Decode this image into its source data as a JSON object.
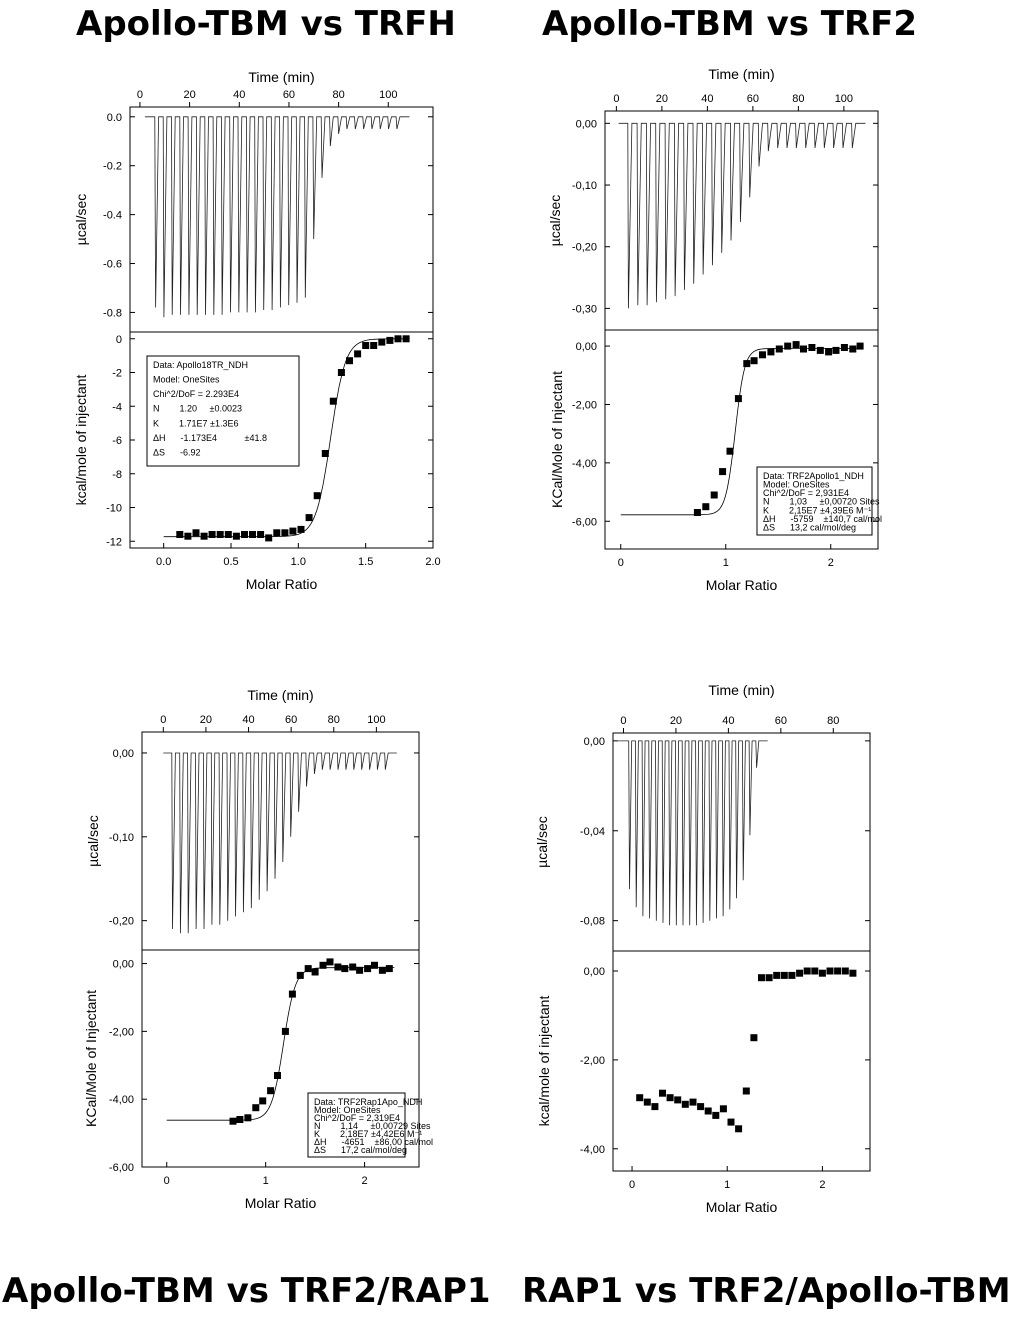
{
  "titles": {
    "a": "Apollo-TBM vs TRFH",
    "b": "Apollo-TBM vs TRF2",
    "c": "Apollo-TBM vs TRF2/RAP1",
    "d": "RAP1 vs TRF2/Apollo-TBM"
  },
  "chart_data": [
    {
      "id": "a",
      "type": "scatter",
      "title": "Apollo-TBM vs TRFH",
      "top": {
        "xlabel": "Time (min)",
        "ylabel": "µcal/sec",
        "xticks": [
          "0",
          "20",
          "40",
          "60",
          "80",
          "100"
        ],
        "xvals": [
          0,
          20,
          40,
          60,
          80,
          100
        ],
        "yticks": [
          "0.0",
          "-0.2",
          "-0.4",
          "-0.6",
          "-0.8"
        ],
        "yvals": [
          0,
          -0.2,
          -0.4,
          -0.6,
          -0.8
        ],
        "xlim": [
          -4,
          118
        ],
        "ylim": [
          -0.88,
          0.04
        ],
        "n_injections": 30,
        "t_start": 6,
        "t_step": 3.35,
        "baseline": 0,
        "peaks": [
          -0.78,
          -0.82,
          -0.81,
          -0.81,
          -0.81,
          -0.81,
          -0.81,
          -0.81,
          -0.81,
          -0.8,
          -0.8,
          -0.8,
          -0.8,
          -0.79,
          -0.79,
          -0.78,
          -0.77,
          -0.76,
          -0.74,
          -0.5,
          -0.25,
          -0.12,
          -0.07,
          -0.05,
          -0.05,
          -0.05,
          -0.05,
          -0.05,
          -0.05,
          -0.05
        ]
      },
      "bottom": {
        "xlabel": "Molar Ratio",
        "ylabel": "kcal/mole of injectant",
        "xticks": [
          "0.0",
          "0.5",
          "1.0",
          "1.5",
          "2.0"
        ],
        "xvals": [
          0,
          0.5,
          1,
          1.5,
          2
        ],
        "yticks": [
          "0",
          "-2",
          "-4",
          "-6",
          "-8",
          "-10",
          "-12"
        ],
        "yvals": [
          0,
          -2,
          -4,
          -6,
          -8,
          -10,
          -12
        ],
        "xlim": [
          -0.25,
          2.0
        ],
        "ylim": [
          -12.4,
          0.4
        ],
        "x": [
          0.12,
          0.18,
          0.24,
          0.3,
          0.36,
          0.42,
          0.48,
          0.54,
          0.6,
          0.66,
          0.72,
          0.78,
          0.84,
          0.9,
          0.96,
          1.02,
          1.08,
          1.14,
          1.2,
          1.26,
          1.32,
          1.38,
          1.44,
          1.5,
          1.56,
          1.62,
          1.68,
          1.74,
          1.8
        ],
        "y": [
          -11.6,
          -11.7,
          -11.5,
          -11.7,
          -11.6,
          -11.6,
          -11.6,
          -11.7,
          -11.6,
          -11.6,
          -11.6,
          -11.8,
          -11.5,
          -11.5,
          -11.4,
          -11.3,
          -10.6,
          -9.3,
          -6.8,
          -3.7,
          -2.0,
          -1.3,
          -0.9,
          -0.4,
          -0.4,
          -0.2,
          -0.1,
          0.0,
          0.0
        ],
        "fit": {
          "low": -11.73,
          "high": 0.0,
          "mid": 1.24,
          "width": 0.055,
          "x0": 0.0,
          "x1": 1.82
        },
        "box": [
          "Data: Apollo18TR_NDH",
          "Model: OneSites",
          "Chi^2/DoF = 2.293E4",
          "N        1.20     ±0.0023",
          "K        1.71E7 ±1.3E6",
          "ΔH      -1.173E4           ±41.8",
          "ΔS      -6.92"
        ]
      }
    },
    {
      "id": "b",
      "type": "scatter",
      "title": "Apollo-TBM vs TRF2",
      "top": {
        "xlabel": "Time (min)",
        "ylabel": "µcal/sec",
        "xticks": [
          "0",
          "20",
          "40",
          "60",
          "80",
          "100"
        ],
        "xvals": [
          0,
          20,
          40,
          60,
          80,
          100
        ],
        "yticks": [
          "0,00",
          "-0,10",
          "-0,20",
          "-0,30"
        ],
        "yvals": [
          0,
          -0.1,
          -0.2,
          -0.3
        ],
        "xlim": [
          -5,
          115
        ],
        "ylim": [
          -0.335,
          0.02
        ],
        "n_injections": 25,
        "t_start": 5,
        "t_step": 4.1,
        "baseline": 0,
        "peaks": [
          -0.3,
          -0.295,
          -0.295,
          -0.29,
          -0.285,
          -0.28,
          -0.27,
          -0.26,
          -0.245,
          -0.23,
          -0.21,
          -0.19,
          -0.16,
          -0.12,
          -0.07,
          -0.045,
          -0.04,
          -0.04,
          -0.04,
          -0.04,
          -0.04,
          -0.04,
          -0.04,
          -0.04,
          -0.04
        ]
      },
      "bottom": {
        "xlabel": "Molar Ratio",
        "ylabel": "KCal/Mole of Injectant",
        "xticks": [
          "0",
          "1",
          "2"
        ],
        "xvals": [
          0,
          1,
          2
        ],
        "yticks": [
          "0,00",
          "-2,00",
          "-4,00",
          "-6,00"
        ],
        "yvals": [
          0,
          -2,
          -4,
          -6
        ],
        "xlim": [
          -0.15,
          2.45
        ],
        "ylim": [
          -6.95,
          0.55
        ],
        "x": [
          0.73,
          0.81,
          0.89,
          0.97,
          1.04,
          1.12,
          1.2,
          1.27,
          1.35,
          1.43,
          1.51,
          1.59,
          1.67,
          1.74,
          1.82,
          1.9,
          1.98,
          2.05,
          2.13,
          2.21,
          2.28
        ],
        "y": [
          -5.7,
          -5.5,
          -5.1,
          -4.3,
          -3.6,
          -1.8,
          -0.6,
          -0.5,
          -0.3,
          -0.2,
          -0.1,
          0.0,
          0.05,
          -0.1,
          -0.05,
          -0.15,
          -0.2,
          -0.15,
          -0.05,
          -0.1,
          0.0
        ],
        "fit": {
          "low": -5.78,
          "high": -0.08,
          "mid": 1.09,
          "width": 0.045,
          "x0": 0.0,
          "x1": 2.3
        },
        "box": [
          "Data: TRF2Apollo1_NDH",
          "Model: OneSites",
          "Chi^2/DoF = 2,931E4",
          "N        1,03     ±0,00720 Sites",
          "K        2,15E7 ±4,39E6 M⁻¹",
          "ΔH      -5759    ±140,7 cal/mol",
          "ΔS      13,2 cal/mol/deg"
        ]
      }
    },
    {
      "id": "c",
      "type": "scatter",
      "title": "Apollo-TBM vs TRF2/RAP1",
      "top": {
        "xlabel": "Time (min)",
        "ylabel": "µcal/sec",
        "xticks": [
          "0",
          "20",
          "40",
          "60",
          "80",
          "100"
        ],
        "xvals": [
          0,
          20,
          40,
          60,
          80,
          100
        ],
        "yticks": [
          "0,00",
          "-0,10",
          "-0,20"
        ],
        "yvals": [
          0,
          -0.1,
          -0.2
        ],
        "xlim": [
          -10,
          120
        ],
        "ylim": [
          -0.235,
          0.025
        ],
        "n_injections": 28,
        "t_start": 4,
        "t_step": 3.7,
        "baseline": 0,
        "peaks": [
          -0.21,
          -0.215,
          -0.215,
          -0.21,
          -0.21,
          -0.205,
          -0.205,
          -0.2,
          -0.195,
          -0.19,
          -0.185,
          -0.175,
          -0.165,
          -0.15,
          -0.13,
          -0.1,
          -0.07,
          -0.04,
          -0.025,
          -0.02,
          -0.02,
          -0.02,
          -0.02,
          -0.02,
          -0.02,
          -0.02,
          -0.02,
          -0.02
        ]
      },
      "bottom": {
        "xlabel": "Molar Ratio",
        "ylabel": "KCal/Mole of Injectant",
        "xticks": [
          "0",
          "1",
          "2"
        ],
        "xvals": [
          0,
          1,
          2
        ],
        "yticks": [
          "0,00",
          "-2,00",
          "-4,00",
          "-6,00"
        ],
        "yvals": [
          0,
          -2,
          -4,
          -6
        ],
        "xlim": [
          -0.25,
          2.55
        ],
        "ylim": [
          -6.0,
          0.4
        ],
        "x": [
          0.67,
          0.74,
          0.82,
          0.9,
          0.97,
          1.05,
          1.12,
          1.2,
          1.27,
          1.35,
          1.43,
          1.5,
          1.58,
          1.65,
          1.73,
          1.8,
          1.88,
          1.95,
          2.03,
          2.1,
          2.18,
          2.25
        ],
        "y": [
          -4.65,
          -4.6,
          -4.55,
          -4.25,
          -4.05,
          -3.75,
          -3.3,
          -2.0,
          -0.9,
          -0.35,
          -0.15,
          -0.25,
          -0.05,
          0.05,
          -0.1,
          -0.15,
          -0.1,
          -0.2,
          -0.15,
          -0.05,
          -0.2,
          -0.15
        ],
        "fit": {
          "low": -4.62,
          "high": -0.12,
          "mid": 1.18,
          "width": 0.06,
          "x0": 0.0,
          "x1": 2.3
        },
        "box": [
          "Data: TRF2Rap1Apo_NDH",
          "Model: OneSites",
          "Chi^2/DoF = 2,319E4",
          "N        1,14     ±0,00729 Sites",
          "K        2,18E7 ±4,42E6 M⁻¹",
          "ΔH      -4651    ±86,00 cal/mol",
          "ΔS      17,2 cal/mol/deg"
        ]
      }
    },
    {
      "id": "d",
      "type": "scatter",
      "title": "RAP1 vs TRF2/Apollo-TBM",
      "top": {
        "xlabel": "Time (min)",
        "ylabel": "µcal/sec",
        "xticks": [
          "0",
          "20",
          "40",
          "60",
          "80"
        ],
        "xvals": [
          0,
          20,
          40,
          60,
          80
        ],
        "yticks": [
          "0,00",
          "-0,04",
          "-0,08"
        ],
        "yvals": [
          0,
          -0.04,
          -0.08
        ],
        "xlim": [
          -4,
          94
        ],
        "ylim": [
          -0.0935,
          0.0035
        ],
        "n_injections": 20,
        "t_start": 2,
        "t_step": 2.55,
        "baseline": 0,
        "peaks": [
          -0.066,
          -0.074,
          -0.078,
          -0.079,
          -0.08,
          -0.081,
          -0.082,
          -0.082,
          -0.082,
          -0.082,
          -0.082,
          -0.081,
          -0.08,
          -0.079,
          -0.078,
          -0.075,
          -0.07,
          -0.062,
          -0.042,
          -0.012
        ]
      },
      "bottom": {
        "xlabel": "Molar Ratio",
        "ylabel": "kcal/mole of injectant",
        "xticks": [
          "0",
          "1",
          "2"
        ],
        "xvals": [
          0,
          1,
          2
        ],
        "yticks": [
          "0,00",
          "-2,00",
          "-4,00"
        ],
        "yvals": [
          0,
          -2,
          -4
        ],
        "xlim": [
          -0.2,
          2.5
        ],
        "ylim": [
          -4.5,
          0.45
        ],
        "x": [
          0.08,
          0.16,
          0.24,
          0.32,
          0.4,
          0.48,
          0.56,
          0.64,
          0.72,
          0.8,
          0.88,
          0.96,
          1.04,
          1.12,
          1.2,
          1.28,
          1.36,
          1.44,
          1.52,
          1.6,
          1.68,
          1.76,
          1.84,
          1.92,
          2.0,
          2.08,
          2.16,
          2.24,
          2.32
        ],
        "y": [
          -2.85,
          -2.95,
          -3.05,
          -2.75,
          -2.85,
          -2.9,
          -3.0,
          -2.95,
          -3.05,
          -3.15,
          -3.25,
          -3.1,
          -3.4,
          -3.55,
          -2.7,
          -1.5,
          -0.15,
          -0.15,
          -0.1,
          -0.1,
          -0.1,
          -0.05,
          0.0,
          0.0,
          -0.05,
          0.0,
          0.0,
          0.0,
          -0.05
        ]
      }
    }
  ]
}
